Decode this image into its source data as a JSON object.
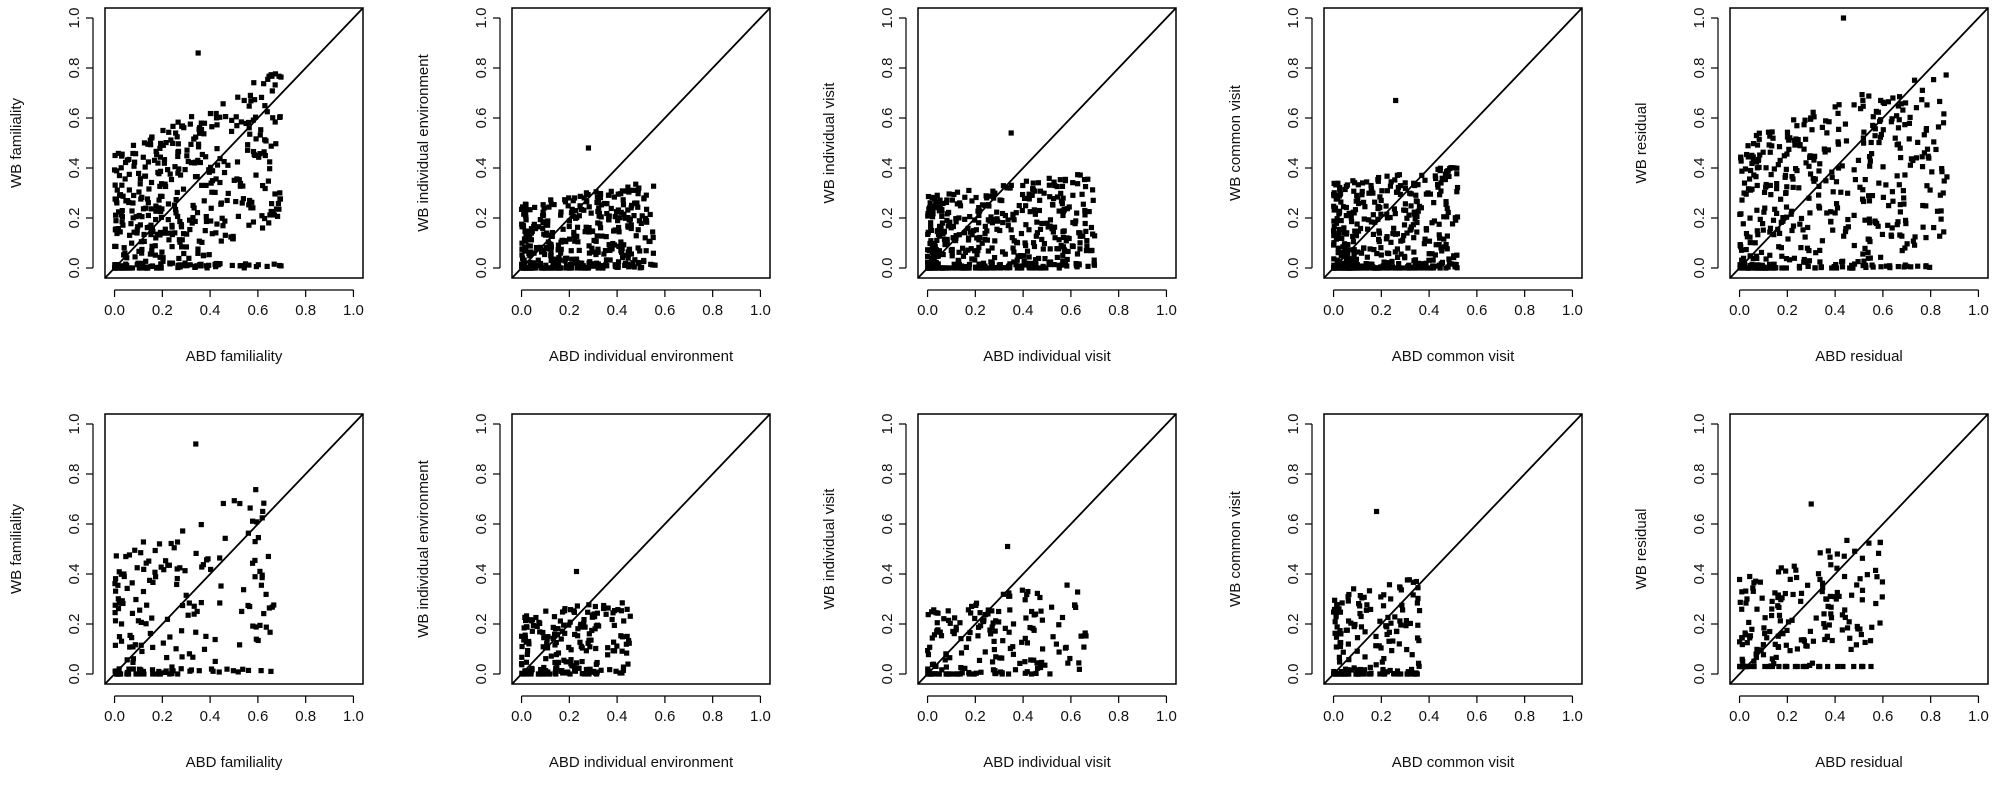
{
  "chart_data": [
    {
      "type": "scatter",
      "xlabel": "ABD familiality",
      "ylabel": "WB familiality",
      "xlim": [
        0,
        1
      ],
      "ylim": [
        0,
        1
      ],
      "xticks": [
        "0.0",
        "0.2",
        "0.4",
        "0.6",
        "0.8",
        "1.0"
      ],
      "yticks": [
        "0.0",
        "0.2",
        "0.4",
        "0.6",
        "0.8",
        "1.0"
      ],
      "reference_line": "y = x",
      "n_points": 480,
      "seed": 11,
      "x_range": [
        0.0,
        0.7
      ],
      "y_range": [
        0.0,
        0.86
      ],
      "grid": false
    },
    {
      "type": "scatter",
      "xlabel": "ABD individual environment",
      "ylabel": "WB individual environment",
      "xlim": [
        0,
        1
      ],
      "ylim": [
        0,
        1
      ],
      "xticks": [
        "0.0",
        "0.2",
        "0.4",
        "0.6",
        "0.8",
        "1.0"
      ],
      "yticks": [
        "0.0",
        "0.2",
        "0.4",
        "0.6",
        "0.8",
        "1.0"
      ],
      "reference_line": "y = x",
      "n_points": 420,
      "seed": 23,
      "x_range": [
        0.0,
        0.56
      ],
      "y_range": [
        0.0,
        0.48
      ],
      "grid": false
    },
    {
      "type": "scatter",
      "xlabel": "ABD individual visit",
      "ylabel": "WB individual visit",
      "xlim": [
        0,
        1
      ],
      "ylim": [
        0,
        1
      ],
      "xticks": [
        "0.0",
        "0.2",
        "0.4",
        "0.6",
        "0.8",
        "1.0"
      ],
      "yticks": [
        "0.0",
        "0.2",
        "0.4",
        "0.6",
        "0.8",
        "1.0"
      ],
      "reference_line": "y = x",
      "n_points": 480,
      "seed": 37,
      "x_range": [
        0.0,
        0.7
      ],
      "y_range": [
        0.0,
        0.54
      ],
      "grid": false
    },
    {
      "type": "scatter",
      "xlabel": "ABD common visit",
      "ylabel": "WB common visit",
      "xlim": [
        0,
        1
      ],
      "ylim": [
        0,
        1
      ],
      "xticks": [
        "0.0",
        "0.2",
        "0.4",
        "0.6",
        "0.8",
        "1.0"
      ],
      "yticks": [
        "0.0",
        "0.2",
        "0.4",
        "0.6",
        "0.8",
        "1.0"
      ],
      "reference_line": "y = x",
      "n_points": 420,
      "seed": 41,
      "x_range": [
        0.0,
        0.52
      ],
      "y_range": [
        0.0,
        0.67
      ],
      "grid": false
    },
    {
      "type": "scatter",
      "xlabel": "ABD residual",
      "ylabel": "WB residual",
      "xlim": [
        0,
        1
      ],
      "ylim": [
        0,
        1
      ],
      "xticks": [
        "0.0",
        "0.2",
        "0.4",
        "0.6",
        "0.8",
        "1.0"
      ],
      "yticks": [
        "0.0",
        "0.2",
        "0.4",
        "0.6",
        "0.8",
        "1.0"
      ],
      "reference_line": "y = x",
      "n_points": 480,
      "seed": 53,
      "x_range": [
        0.0,
        0.87
      ],
      "y_range": [
        0.0,
        1.0
      ],
      "grid": false
    },
    {
      "type": "scatter",
      "xlabel": "ABD familiality",
      "ylabel": "WB familiality",
      "xlim": [
        0,
        1
      ],
      "ylim": [
        0,
        1
      ],
      "xticks": [
        "0.0",
        "0.2",
        "0.4",
        "0.6",
        "0.8",
        "1.0"
      ],
      "yticks": [
        "0.0",
        "0.2",
        "0.4",
        "0.6",
        "0.8",
        "1.0"
      ],
      "reference_line": "y = x",
      "n_points": 200,
      "seed": 67,
      "x_range": [
        0.0,
        0.68
      ],
      "y_range": [
        0.0,
        0.92
      ],
      "grid": false
    },
    {
      "type": "scatter",
      "xlabel": "ABD individual environment",
      "ylabel": "WB individual environment",
      "xlim": [
        0,
        1
      ],
      "ylim": [
        0,
        1
      ],
      "xticks": [
        "0.0",
        "0.2",
        "0.4",
        "0.6",
        "0.8",
        "1.0"
      ],
      "yticks": [
        "0.0",
        "0.2",
        "0.4",
        "0.6",
        "0.8",
        "1.0"
      ],
      "reference_line": "y = x",
      "n_points": 200,
      "seed": 71,
      "x_range": [
        0.0,
        0.46
      ],
      "y_range": [
        0.0,
        0.41
      ],
      "grid": false
    },
    {
      "type": "scatter",
      "xlabel": "ABD individual visit",
      "ylabel": "WB individual visit",
      "xlim": [
        0,
        1
      ],
      "ylim": [
        0,
        1
      ],
      "xticks": [
        "0.0",
        "0.2",
        "0.4",
        "0.6",
        "0.8",
        "1.0"
      ],
      "yticks": [
        "0.0",
        "0.2",
        "0.4",
        "0.6",
        "0.8",
        "1.0"
      ],
      "reference_line": "y = x",
      "n_points": 180,
      "seed": 83,
      "x_range": [
        0.0,
        0.67
      ],
      "y_range": [
        0.0,
        0.51
      ],
      "grid": false
    },
    {
      "type": "scatter",
      "xlabel": "ABD common visit",
      "ylabel": "WB common visit",
      "xlim": [
        0,
        1
      ],
      "ylim": [
        0,
        1
      ],
      "xticks": [
        "0.0",
        "0.2",
        "0.4",
        "0.6",
        "0.8",
        "1.0"
      ],
      "yticks": [
        "0.0",
        "0.2",
        "0.4",
        "0.6",
        "0.8",
        "1.0"
      ],
      "reference_line": "y = x",
      "n_points": 170,
      "seed": 97,
      "x_range": [
        0.0,
        0.36
      ],
      "y_range": [
        0.0,
        0.65
      ],
      "grid": false
    },
    {
      "type": "scatter",
      "xlabel": "ABD residual",
      "ylabel": "WB residual",
      "xlim": [
        0,
        1
      ],
      "ylim": [
        0,
        1
      ],
      "xticks": [
        "0.0",
        "0.2",
        "0.4",
        "0.6",
        "0.8",
        "1.0"
      ],
      "yticks": [
        "0.0",
        "0.2",
        "0.4",
        "0.6",
        "0.8",
        "1.0"
      ],
      "reference_line": "y = x",
      "n_points": 190,
      "seed": 101,
      "x_range": [
        0.0,
        0.6
      ],
      "y_range": [
        0.03,
        0.68
      ],
      "grid": false
    }
  ]
}
